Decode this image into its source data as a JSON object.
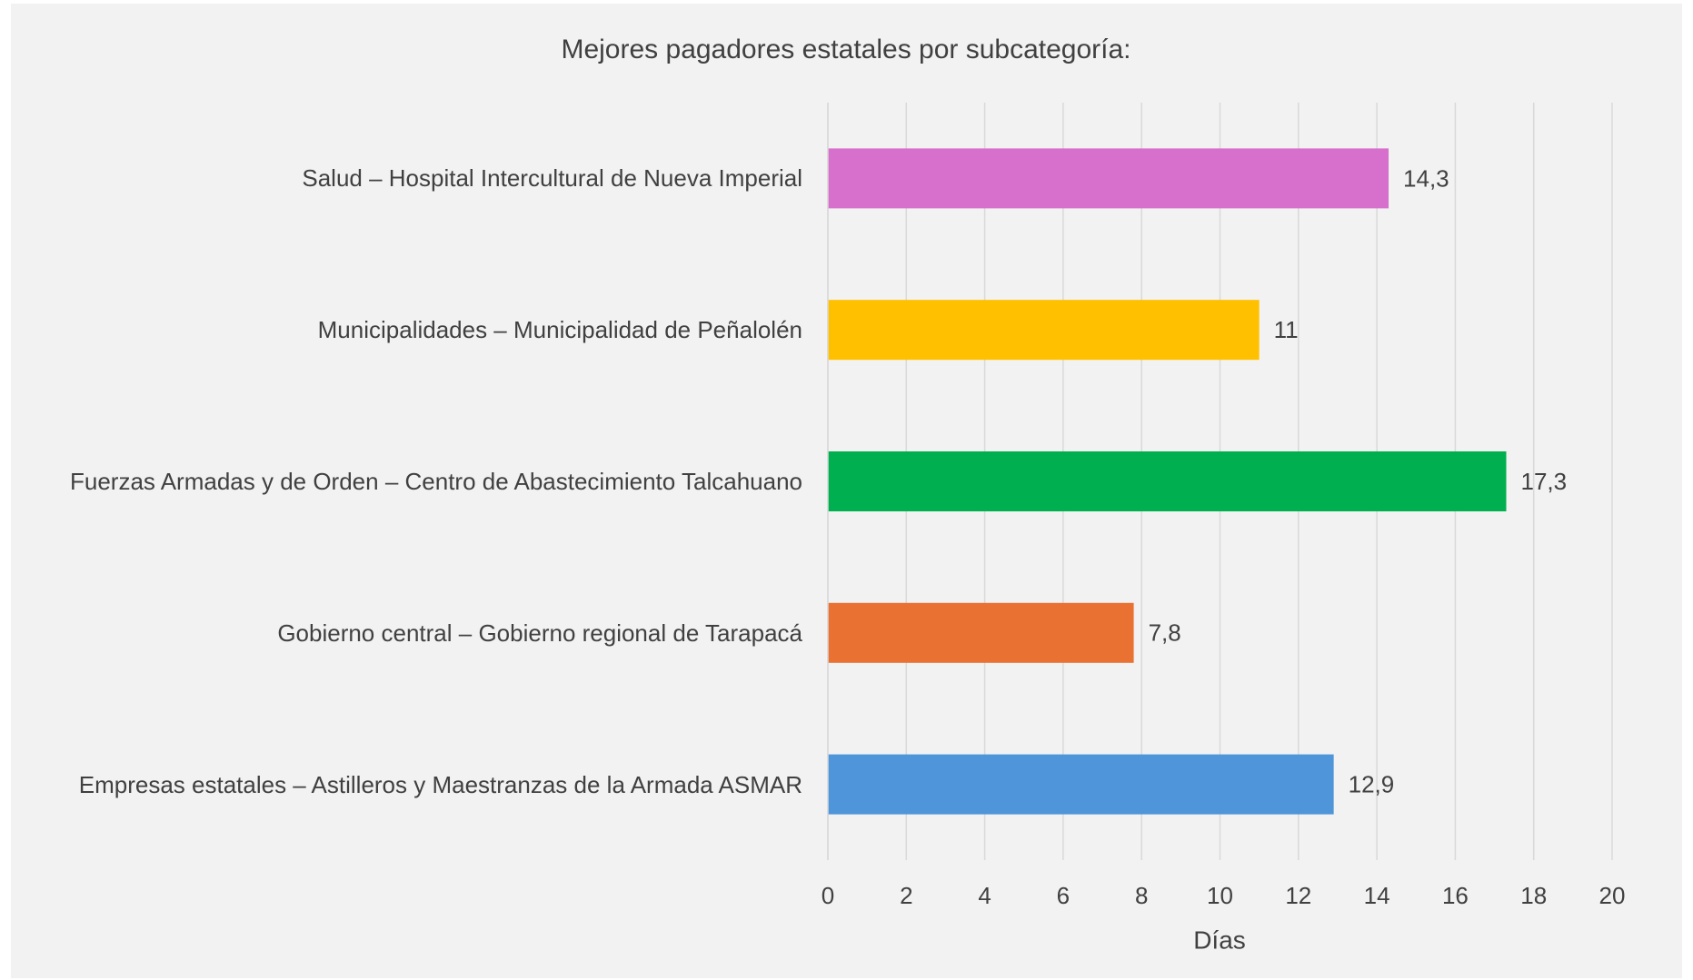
{
  "chart_data": {
    "type": "bar",
    "orientation": "horizontal",
    "title": "Mejores pagadores estatales por subcategoría:",
    "x_label": "Días",
    "categories": [
      "Salud – Hospital Intercultural de Nueva Imperial",
      "Municipalidades – Municipalidad de Peñalolén",
      "Fuerzas Armadas y de Orden – Centro de Abastecimiento Talcahuano",
      "Gobierno central – Gobierno regional de Tarapacá",
      "Empresas estatales – Astilleros y Maestranzas de la Armada ASMAR"
    ],
    "values": [
      14.3,
      11,
      17.3,
      7.8,
      12.9
    ],
    "value_labels": [
      "14,3",
      "11",
      "17,3",
      "7,8",
      "12,9"
    ],
    "colors": [
      "#d76fcc",
      "#ffc000",
      "#00b050",
      "#e97132",
      "#4e95d9"
    ],
    "xlim": [
      0,
      20
    ],
    "xticks": [
      0,
      2,
      4,
      6,
      8,
      10,
      12,
      14,
      16,
      18,
      20
    ],
    "grid": true
  }
}
